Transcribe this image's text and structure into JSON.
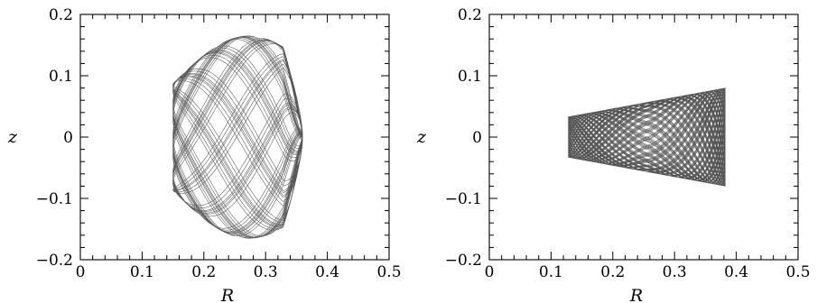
{
  "chart_data": [
    {
      "type": "line",
      "title": "",
      "xlabel": "R",
      "ylabel": "z",
      "xlim": [
        0,
        0.5
      ],
      "ylim": [
        -0.2,
        0.2
      ],
      "x_ticks": [
        "0",
        "0.1",
        "0.2",
        "0.3",
        "0.4",
        "0.5"
      ],
      "y_ticks": [
        "−0.2",
        "−0.1",
        "0",
        "0.1",
        "0.2"
      ],
      "grid": false,
      "series": [
        {
          "description_free": true,
          "orbit": {
            "r_min": 0.15,
            "r_max": 0.36,
            "z_amplitude": 0.165,
            "inner_edge_z": 0.087,
            "loops": 34,
            "edge_R_at_zmax": 0.318
          },
          "color": "#3a3a3a"
        }
      ]
    },
    {
      "type": "line",
      "title": "",
      "xlabel": "R",
      "ylabel": "z",
      "xlim": [
        0,
        0.5
      ],
      "ylim": [
        -0.2,
        0.2
      ],
      "x_ticks": [
        "0",
        "0.1",
        "0.2",
        "0.3",
        "0.4",
        "0.5"
      ],
      "y_ticks": [
        "−0.2",
        "−0.1",
        "0",
        "0.1",
        "0.2"
      ],
      "grid": false,
      "series": [
        {
          "orbit": {
            "r_min": 0.128,
            "r_max": 0.382,
            "z_at_rmin": 0.033,
            "z_at_rmax": 0.08,
            "loops": 60
          },
          "color": "#3a3a3a"
        }
      ]
    }
  ]
}
